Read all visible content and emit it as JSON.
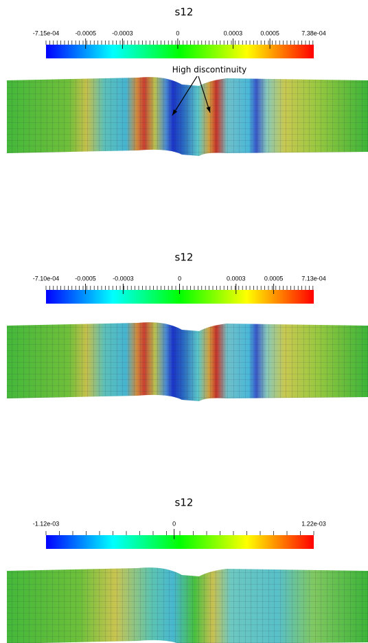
{
  "panels": [
    {
      "title": "s12",
      "colorbar": {
        "min_label": "-7.15e-04",
        "max_label": "7.38e-04",
        "tick_labels": [
          "-0.0005",
          "-0.0003",
          "0",
          "0.0003",
          "0.0005"
        ]
      },
      "annotation": "High discontinuity"
    },
    {
      "title": "s12",
      "colorbar": {
        "min_label": "-7.10e-04",
        "max_label": "7.13e-04",
        "tick_labels": [
          "-0.0005",
          "-0.0003",
          "0",
          "0.0003",
          "0.0005"
        ]
      }
    },
    {
      "title": "s12",
      "colorbar": {
        "min_label": "-1.12e-03",
        "max_label": "1.22e-03",
        "tick_labels": [
          "0"
        ]
      }
    }
  ]
}
